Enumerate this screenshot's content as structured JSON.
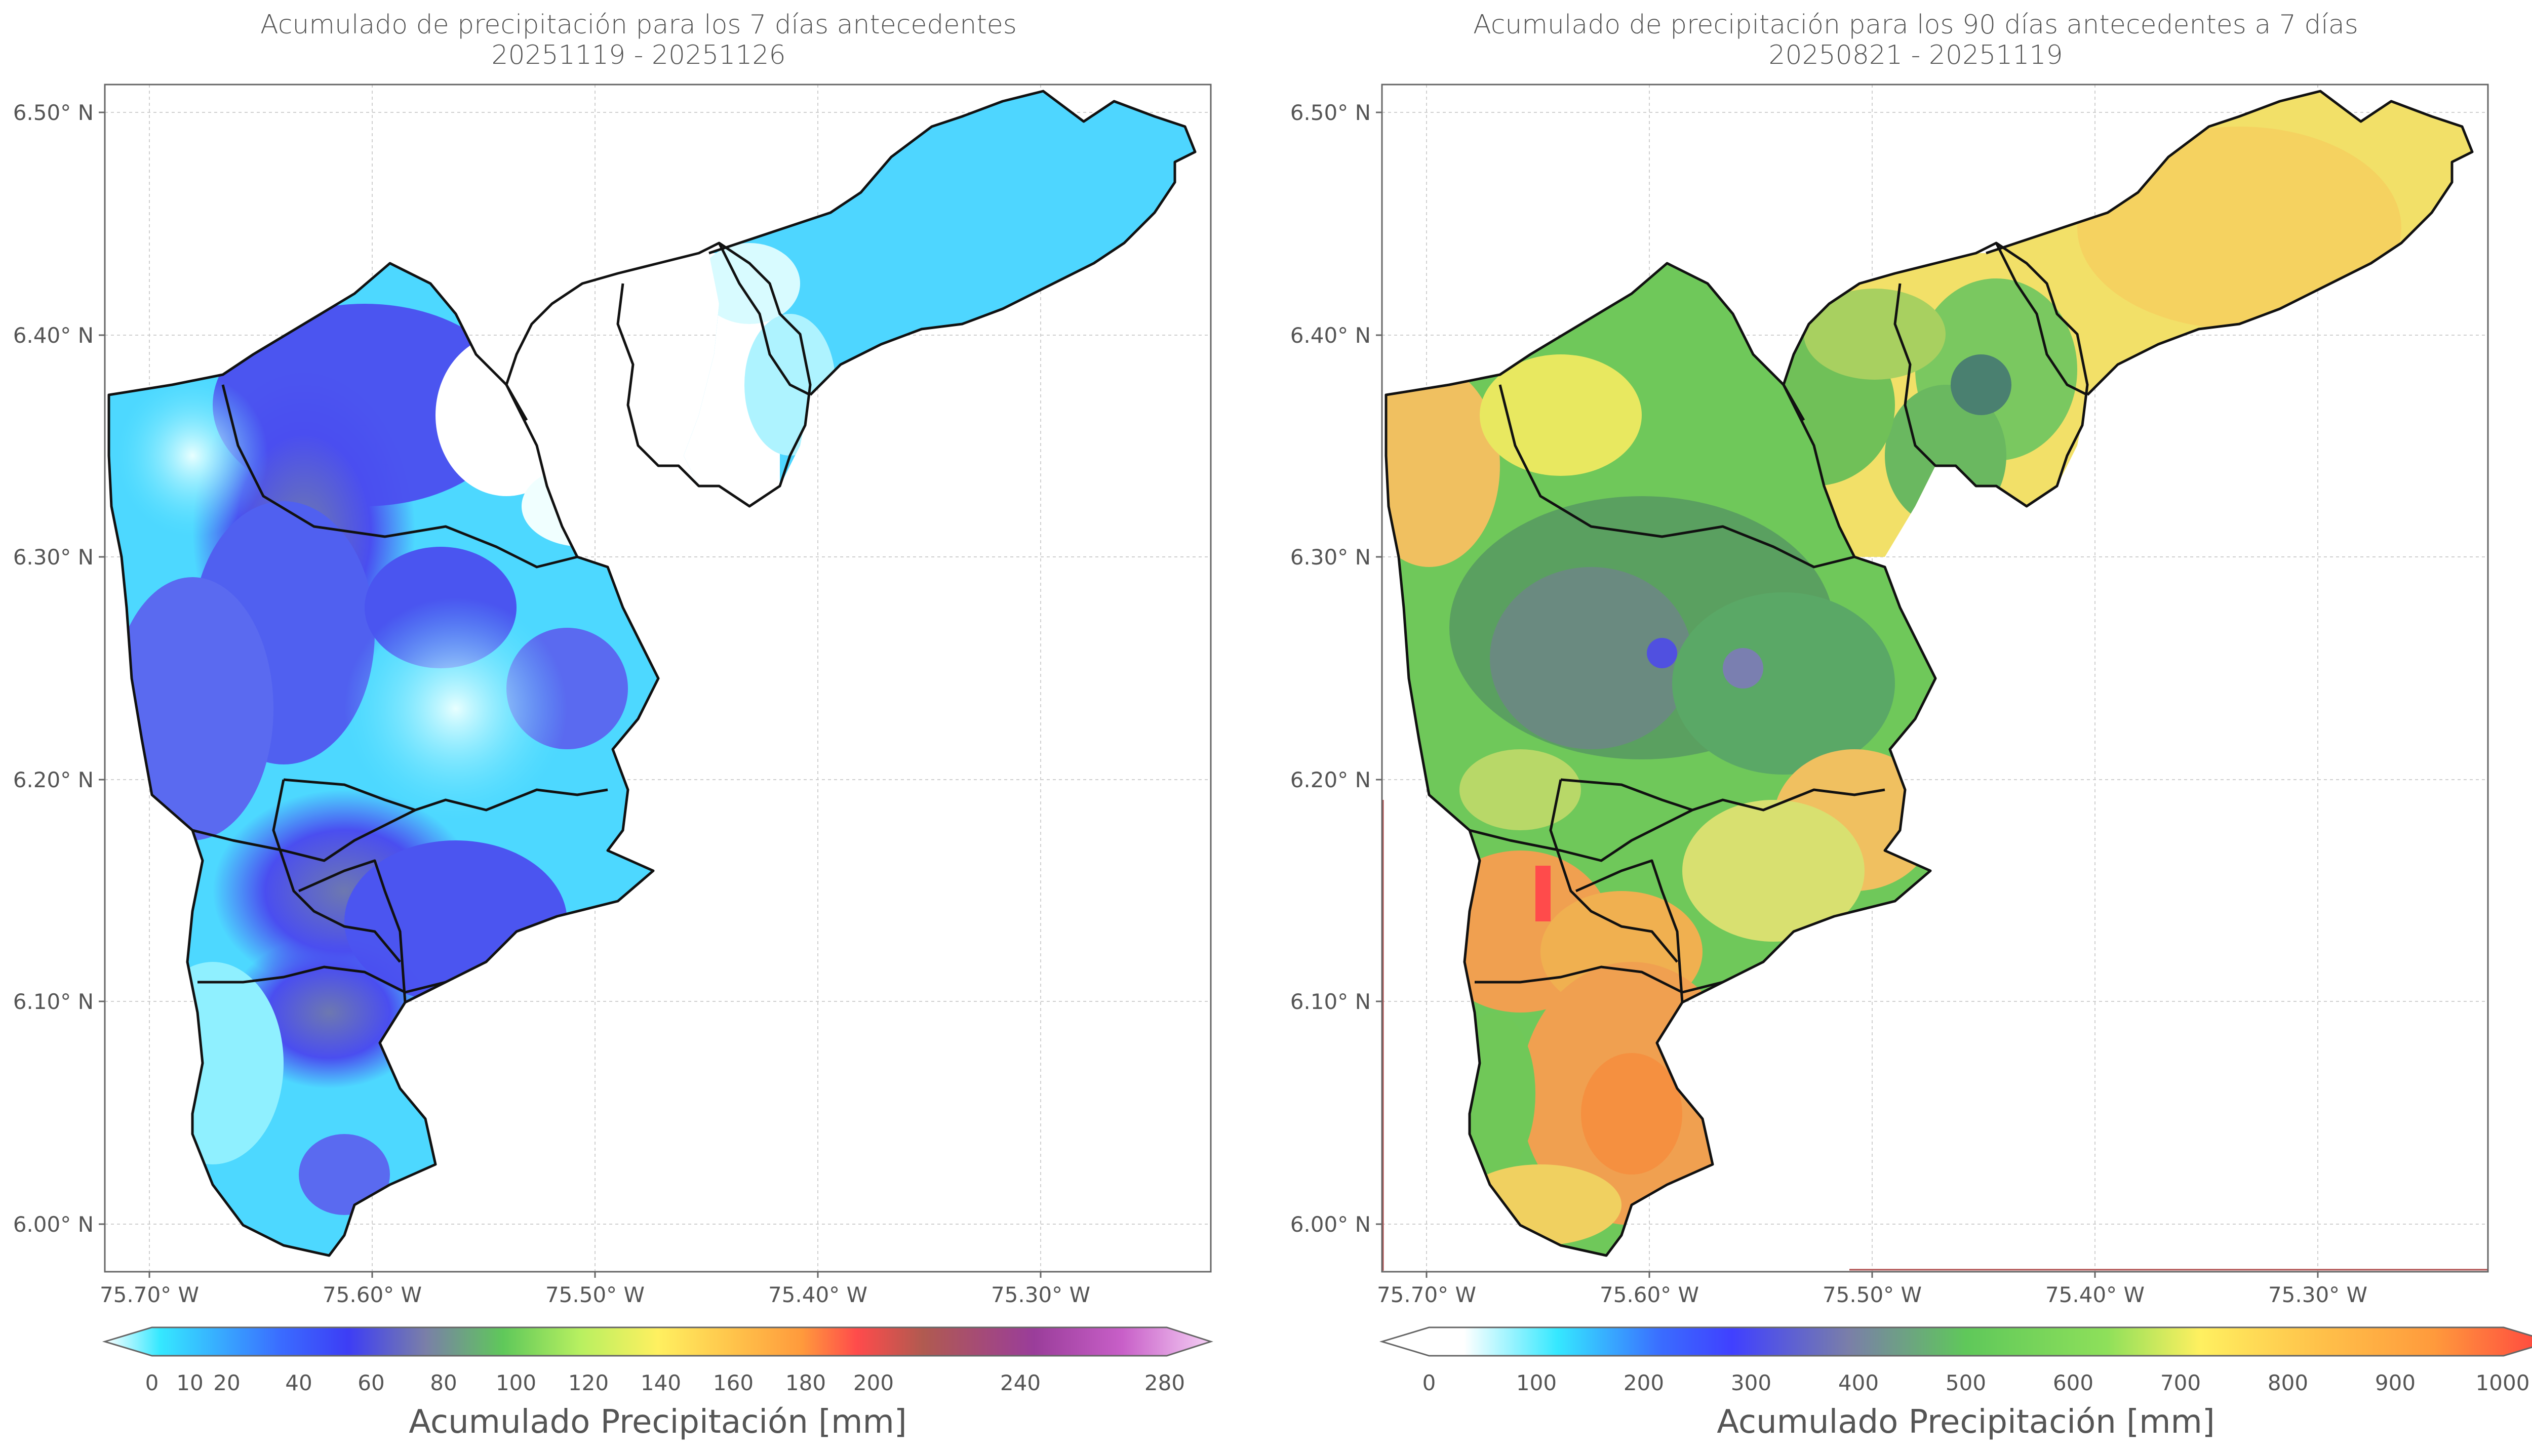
{
  "panels": [
    {
      "title_line1": "Acumulado de precipitación para los 7 días antecedentes",
      "title_line2": "20251119 - 20251126",
      "y_ticks": [
        "6.50° N",
        "6.40° N",
        "6.30° N",
        "6.20° N",
        "6.10° N",
        "6.00° N"
      ],
      "x_ticks": [
        "75.70° W",
        "75.60° W",
        "75.50° W",
        "75.40° W",
        "75.30° W"
      ],
      "colorbar_ticks": [
        "0",
        "10",
        "20",
        "40",
        "60",
        "80",
        "100",
        "120",
        "140",
        "160",
        "180",
        "200",
        "240",
        "280"
      ],
      "colorbar_label": "Acumulado Precipitación [mm]",
      "colorbar_colors": [
        "#ffffff",
        "#35e8ff",
        "#3a6bff",
        "#3d3df5",
        "#7a7fa8",
        "#5fc85a",
        "#b8f060",
        "#fff060",
        "#ffc24a",
        "#ff9a3c",
        "#ff4b4b",
        "#b05a50",
        "#9a3d9a",
        "#c85fc8",
        "#f5d0f5"
      ]
    },
    {
      "title_line1": "Acumulado de precipitación para los 90 días antecedentes a 7 días",
      "title_line2": "20250821 - 20251119",
      "y_ticks": [
        "6.50° N",
        "6.40° N",
        "6.30° N",
        "6.20° N",
        "6.10° N",
        "6.00° N"
      ],
      "x_ticks": [
        "75.70° W",
        "75.60° W",
        "75.50° W",
        "75.40° W",
        "75.30° W"
      ],
      "colorbar_ticks": [
        "0",
        "100",
        "200",
        "300",
        "400",
        "500",
        "600",
        "700",
        "800",
        "900",
        "1000"
      ],
      "colorbar_label": "Acumulado Precipitación [mm]",
      "colorbar_colors": [
        "#ffffff",
        "#35e8ff",
        "#3a6bff",
        "#4040ff",
        "#7a7fa8",
        "#5fc85a",
        "#8ee05a",
        "#fff060",
        "#ffc24a",
        "#ff9a3c",
        "#ff4040"
      ]
    }
  ],
  "colors": {
    "frame": "#666666",
    "grid": "#c8c8c8",
    "boundary": "#111111"
  }
}
